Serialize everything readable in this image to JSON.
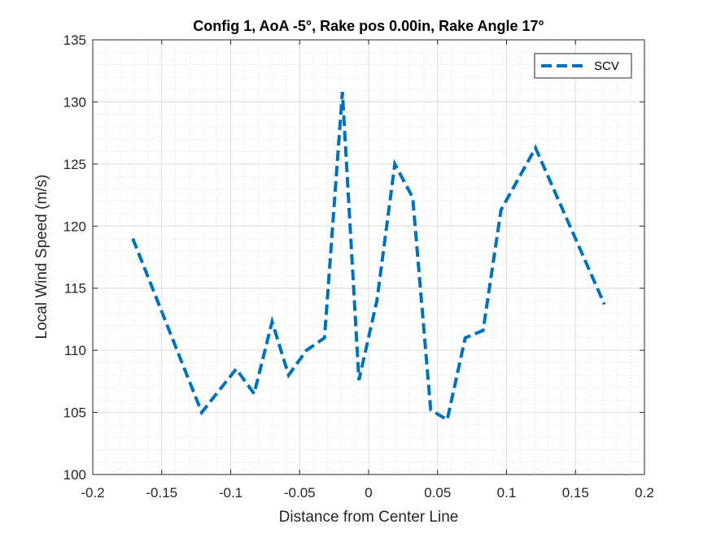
{
  "chart_data": {
    "type": "line",
    "title": "Config 1, AoA -5°, Rake pos 0.00in, Rake Angle 17°",
    "xlabel": "Distance from Center Line",
    "ylabel": "Local Wind Speed (m/s)",
    "xlim": [
      -0.2,
      0.2
    ],
    "ylim": [
      100,
      135
    ],
    "xticks": [
      -0.2,
      -0.15,
      -0.1,
      -0.05,
      0,
      0.05,
      0.1,
      0.15,
      0.2
    ],
    "xtick_labels": [
      "-0.2",
      "-0.15",
      "-0.1",
      "-0.05",
      "0",
      "0.05",
      "0.1",
      "0.15",
      "0.2"
    ],
    "yticks": [
      100,
      105,
      110,
      115,
      120,
      125,
      130,
      135
    ],
    "ytick_labels": [
      "100",
      "105",
      "110",
      "115",
      "120",
      "125",
      "130",
      "135"
    ],
    "grid": true,
    "minor_grid": true,
    "legend": "top-right",
    "series": [
      {
        "name": "SCV",
        "color": "#0072BD",
        "linestyle": "dashed",
        "x": [
          -0.171,
          -0.121,
          -0.096,
          -0.083,
          -0.07,
          -0.058,
          -0.045,
          -0.032,
          -0.019,
          -0.007,
          0.006,
          0.019,
          0.032,
          0.045,
          0.057,
          0.07,
          0.083,
          0.096,
          0.121,
          0.171
        ],
        "y": [
          119,
          105,
          108.5,
          106.5,
          112.3,
          108,
          110,
          111,
          130.8,
          107.6,
          114,
          125,
          122.3,
          105.2,
          104.4,
          111,
          111.6,
          121.3,
          126.3,
          113.7
        ]
      }
    ]
  }
}
